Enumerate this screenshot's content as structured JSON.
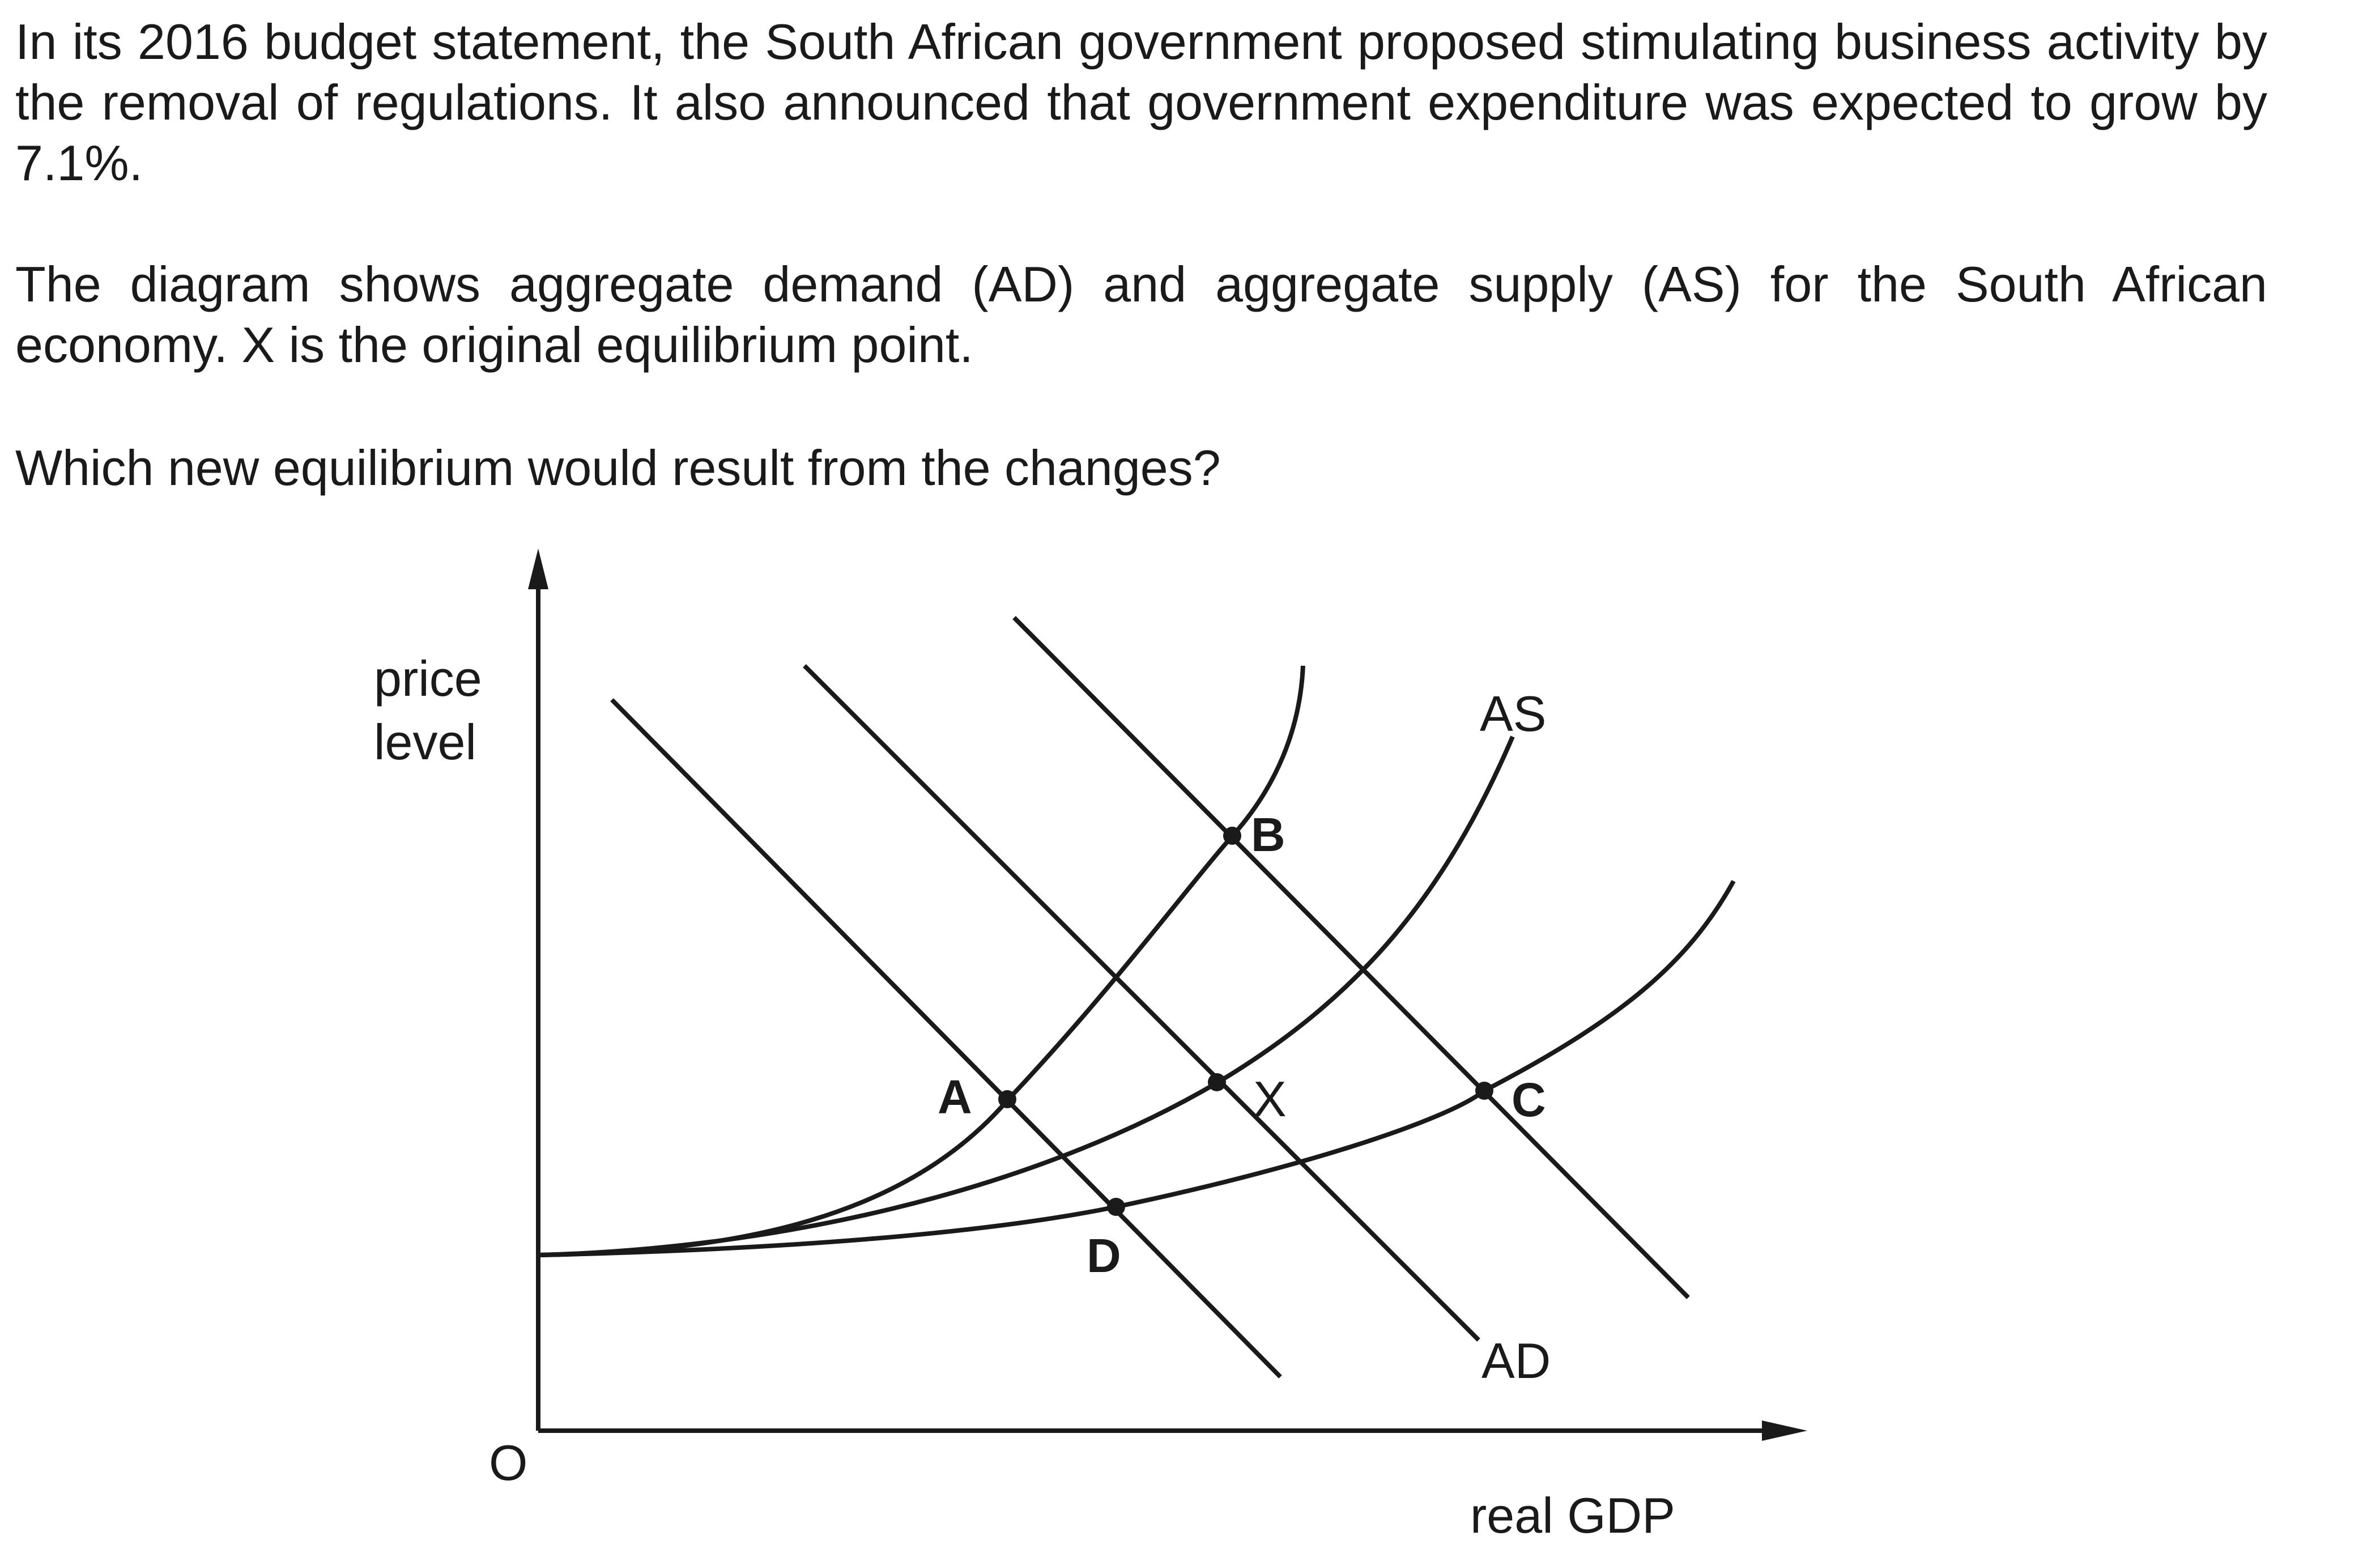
{
  "question": {
    "paragraph_1": "In its 2016 budget statement, the South African government proposed stimulating business activity by the removal of regulations. It also announced that government expenditure was expected to grow by 7.1%.",
    "paragraph_2": "The diagram shows aggregate demand (AD) and aggregate supply (AS) for the South African economy. X is the original equilibrium point.",
    "paragraph_3": "Which new equilibrium would result from the changes?"
  },
  "diagram": {
    "y_axis_label_line1": "price",
    "y_axis_label_line2": "level",
    "x_axis_label": "real GDP",
    "origin_label": "O",
    "supply_curve_label": "AS",
    "demand_curve_label": "AD",
    "points": {
      "A": "A",
      "B": "B",
      "C": "C",
      "D": "D",
      "X": "X"
    }
  }
}
